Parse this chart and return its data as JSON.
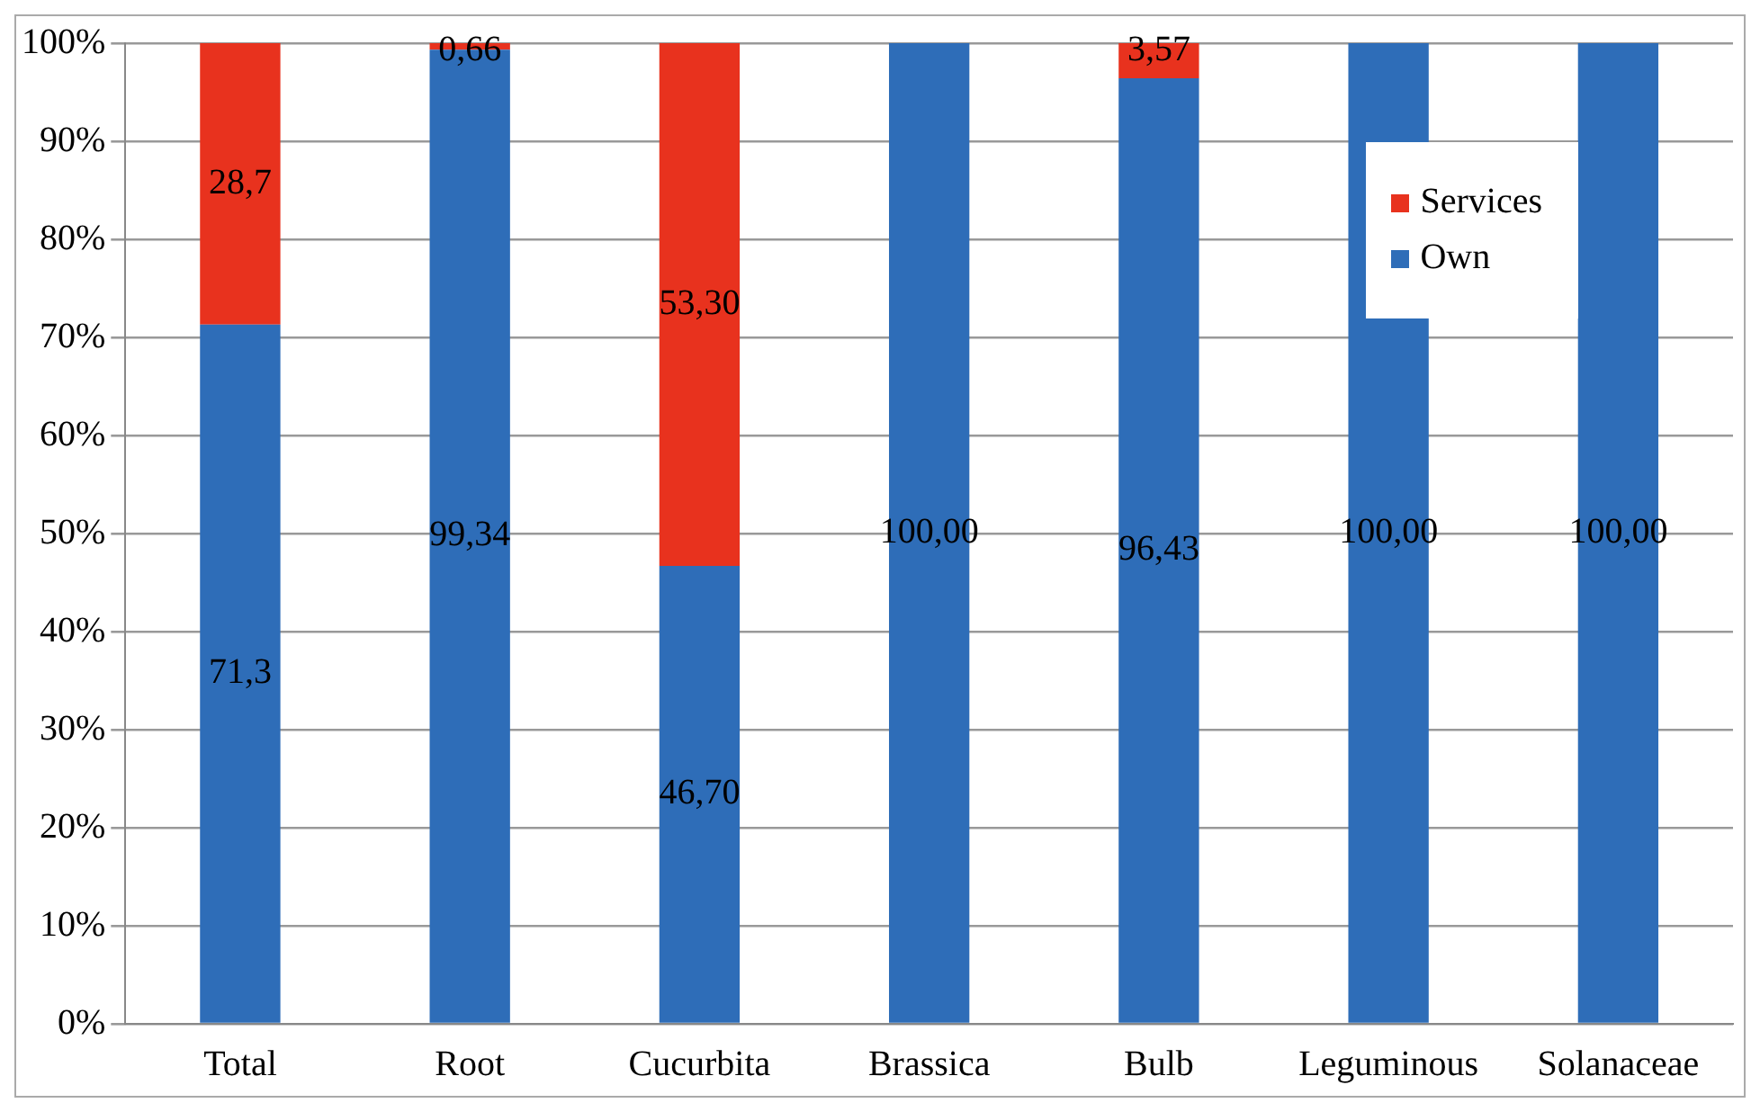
{
  "chart_data": {
    "type": "bar",
    "stacked": true,
    "categories": [
      "Total",
      "Root",
      "Cucurbita",
      "Brassica",
      "Bulb",
      "Leguminous",
      "Solanaceae"
    ],
    "series": [
      {
        "name": "Own",
        "color": "#2e6db8",
        "values": [
          71.3,
          99.34,
          46.7,
          100,
          96.43,
          100,
          100
        ],
        "value_labels": [
          "71,3",
          "99,34",
          "46,70",
          "100,00",
          "96,43",
          "100,00",
          "100,00"
        ]
      },
      {
        "name": "Services",
        "color": "#e8321e",
        "values": [
          28.7,
          0.66,
          53.3,
          0,
          3.57,
          0,
          0
        ],
        "value_labels": [
          "28,7",
          "0,66",
          "53,30",
          null,
          "3,57",
          null,
          null
        ]
      }
    ],
    "ylim": [
      0,
      100
    ],
    "yticks": [
      {
        "value": 0,
        "label": "0%"
      },
      {
        "value": 10,
        "label": "10%"
      },
      {
        "value": 20,
        "label": "20%"
      },
      {
        "value": 30,
        "label": "30%"
      },
      {
        "value": 40,
        "label": "40%"
      },
      {
        "value": 50,
        "label": "50%"
      },
      {
        "value": 60,
        "label": "60%"
      },
      {
        "value": 70,
        "label": "70%"
      },
      {
        "value": 80,
        "label": "80%"
      },
      {
        "value": 90,
        "label": "90%"
      },
      {
        "value": 100,
        "label": "100%"
      }
    ],
    "grid": "y",
    "legend": "top right"
  }
}
